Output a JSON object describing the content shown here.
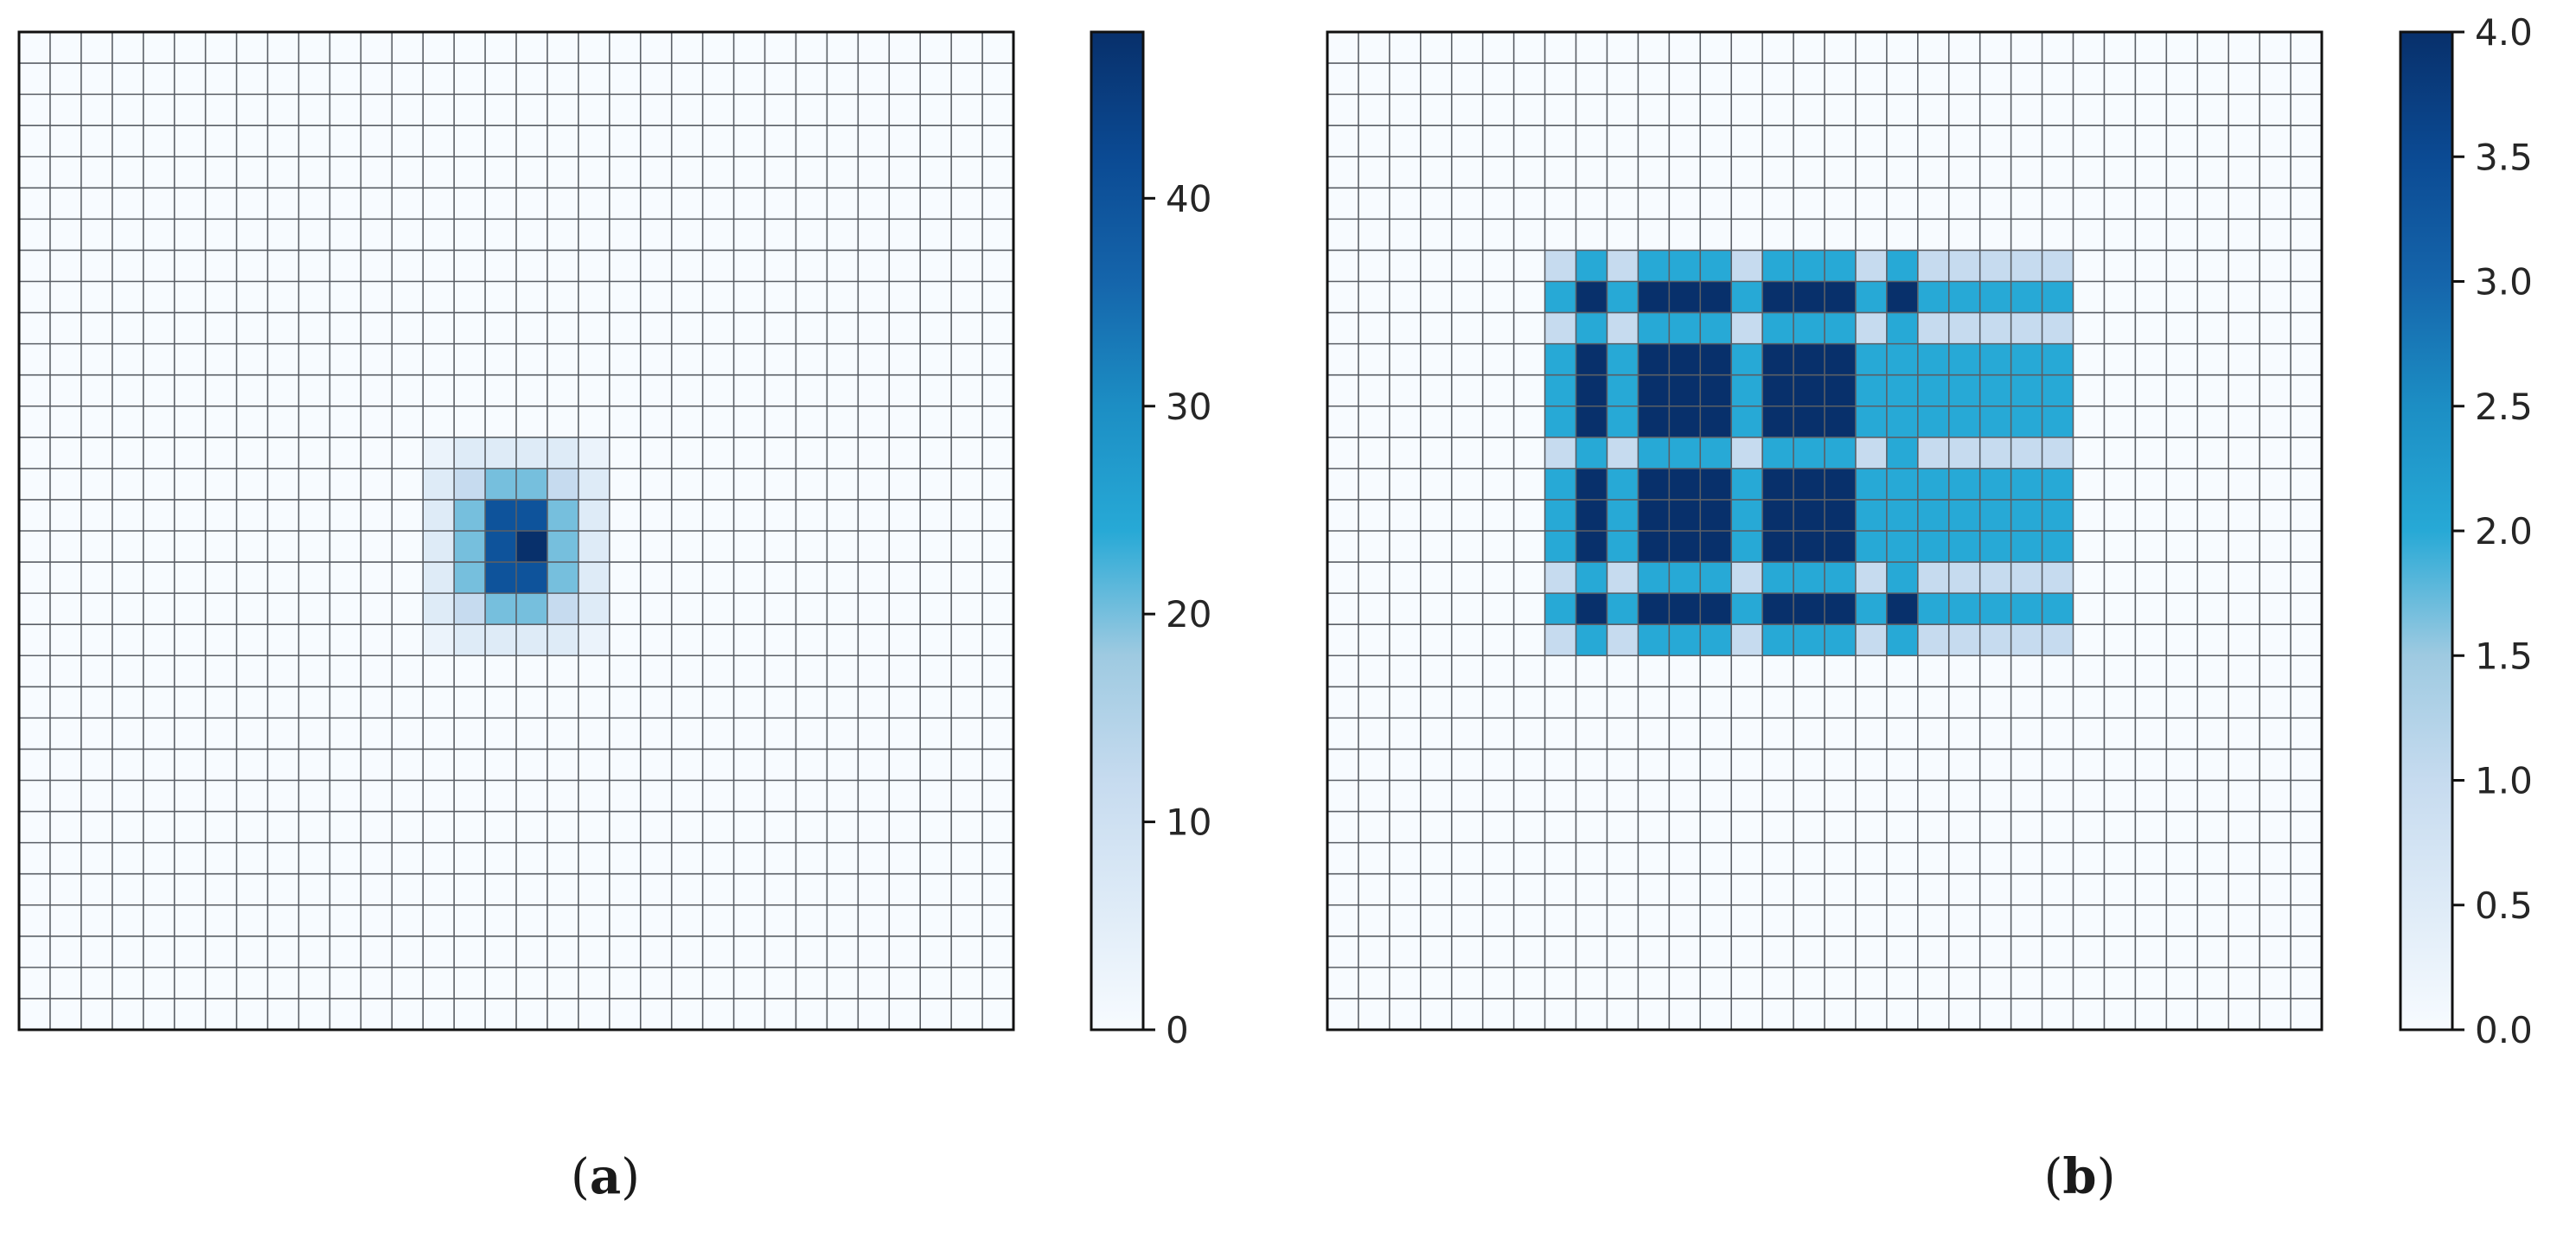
{
  "panels": {
    "a": {
      "label_open": "(",
      "label_letter": "a",
      "label_close": ")",
      "colorbar_ticks": [
        "0",
        "10",
        "20",
        "30",
        "40"
      ]
    },
    "b": {
      "label_open": "(",
      "label_letter": "b",
      "label_close": ")",
      "colorbar_ticks": [
        "0.0",
        "0.5",
        "1.0",
        "1.5",
        "2.0",
        "2.5",
        "3.0",
        "3.5",
        "4.0"
      ]
    }
  },
  "chart_data": [
    {
      "type": "heatmap",
      "panel": "a",
      "colormap": "Blues",
      "grid_size": [
        32,
        32
      ],
      "vmin": 0,
      "vmax": 48,
      "colorbar_tick_values": [
        0,
        10,
        20,
        30,
        40
      ],
      "default_value": 0,
      "cells": [
        {
          "row": 13,
          "col": 13,
          "v": 3
        },
        {
          "row": 13,
          "col": 14,
          "v": 6
        },
        {
          "row": 13,
          "col": 15,
          "v": 6
        },
        {
          "row": 13,
          "col": 16,
          "v": 6
        },
        {
          "row": 13,
          "col": 17,
          "v": 6
        },
        {
          "row": 13,
          "col": 18,
          "v": 3
        },
        {
          "row": 14,
          "col": 13,
          "v": 6
        },
        {
          "row": 14,
          "col": 14,
          "v": 12
        },
        {
          "row": 14,
          "col": 15,
          "v": 20
        },
        {
          "row": 14,
          "col": 16,
          "v": 20
        },
        {
          "row": 14,
          "col": 17,
          "v": 12
        },
        {
          "row": 14,
          "col": 18,
          "v": 6
        },
        {
          "row": 15,
          "col": 13,
          "v": 6
        },
        {
          "row": 15,
          "col": 14,
          "v": 20
        },
        {
          "row": 15,
          "col": 15,
          "v": 40
        },
        {
          "row": 15,
          "col": 16,
          "v": 40
        },
        {
          "row": 15,
          "col": 17,
          "v": 20
        },
        {
          "row": 15,
          "col": 18,
          "v": 6
        },
        {
          "row": 16,
          "col": 13,
          "v": 6
        },
        {
          "row": 16,
          "col": 14,
          "v": 20
        },
        {
          "row": 16,
          "col": 15,
          "v": 40
        },
        {
          "row": 16,
          "col": 16,
          "v": 48
        },
        {
          "row": 16,
          "col": 17,
          "v": 20
        },
        {
          "row": 16,
          "col": 18,
          "v": 6
        },
        {
          "row": 17,
          "col": 13,
          "v": 6
        },
        {
          "row": 17,
          "col": 14,
          "v": 20
        },
        {
          "row": 17,
          "col": 15,
          "v": 40
        },
        {
          "row": 17,
          "col": 16,
          "v": 40
        },
        {
          "row": 17,
          "col": 17,
          "v": 20
        },
        {
          "row": 17,
          "col": 18,
          "v": 6
        },
        {
          "row": 18,
          "col": 13,
          "v": 6
        },
        {
          "row": 18,
          "col": 14,
          "v": 12
        },
        {
          "row": 18,
          "col": 15,
          "v": 20
        },
        {
          "row": 18,
          "col": 16,
          "v": 20
        },
        {
          "row": 18,
          "col": 17,
          "v": 12
        },
        {
          "row": 18,
          "col": 18,
          "v": 6
        },
        {
          "row": 19,
          "col": 13,
          "v": 3
        },
        {
          "row": 19,
          "col": 14,
          "v": 6
        },
        {
          "row": 19,
          "col": 15,
          "v": 6
        },
        {
          "row": 19,
          "col": 16,
          "v": 6
        },
        {
          "row": 19,
          "col": 17,
          "v": 6
        },
        {
          "row": 19,
          "col": 18,
          "v": 3
        }
      ]
    },
    {
      "type": "heatmap",
      "panel": "b",
      "colormap": "Blues",
      "grid_size": [
        32,
        32
      ],
      "vmin": 0,
      "vmax": 4,
      "colorbar_tick_values": [
        0.0,
        0.5,
        1.0,
        1.5,
        2.0,
        2.5,
        3.0,
        3.5,
        4.0
      ],
      "default_value": 0,
      "block_origin": {
        "row": 7,
        "col": 7
      },
      "block_values": [
        [
          1,
          2,
          1,
          2,
          2,
          2,
          1,
          2,
          2,
          2,
          1,
          2,
          1,
          1,
          1,
          1,
          1
        ],
        [
          2,
          4,
          2,
          4,
          4,
          4,
          2,
          4,
          4,
          4,
          2,
          4,
          2,
          2,
          2,
          2,
          2
        ],
        [
          1,
          2,
          1,
          2,
          2,
          2,
          1,
          2,
          2,
          2,
          1,
          2,
          1,
          1,
          1,
          1,
          1
        ],
        [
          2,
          4,
          2,
          4,
          4,
          4,
          2,
          4,
          4,
          4,
          2,
          2,
          2,
          2,
          2,
          2,
          2
        ],
        [
          2,
          4,
          2,
          4,
          4,
          4,
          2,
          4,
          4,
          4,
          2,
          2,
          2,
          2,
          2,
          2,
          2
        ],
        [
          2,
          4,
          2,
          4,
          4,
          4,
          2,
          4,
          4,
          4,
          2,
          2,
          2,
          2,
          2,
          2,
          2
        ],
        [
          1,
          2,
          1,
          2,
          2,
          2,
          1,
          2,
          2,
          2,
          1,
          2,
          1,
          1,
          1,
          1,
          1
        ],
        [
          2,
          4,
          2,
          4,
          4,
          4,
          2,
          4,
          4,
          4,
          2,
          2,
          2,
          2,
          2,
          2,
          2
        ],
        [
          2,
          4,
          2,
          4,
          4,
          4,
          2,
          4,
          4,
          4,
          2,
          2,
          2,
          2,
          2,
          2,
          2
        ],
        [
          2,
          4,
          2,
          4,
          4,
          4,
          2,
          4,
          4,
          4,
          2,
          2,
          2,
          2,
          2,
          2,
          2
        ],
        [
          1,
          2,
          1,
          2,
          2,
          2,
          1,
          2,
          2,
          2,
          1,
          2,
          1,
          1,
          1,
          1,
          1
        ],
        [
          2,
          4,
          2,
          4,
          4,
          4,
          2,
          4,
          4,
          4,
          2,
          4,
          2,
          2,
          2,
          2,
          2
        ],
        [
          1,
          2,
          1,
          2,
          2,
          2,
          1,
          2,
          2,
          2,
          1,
          2,
          1,
          1,
          1,
          1,
          1
        ]
      ],
      "block_cols_used": 17
    }
  ]
}
